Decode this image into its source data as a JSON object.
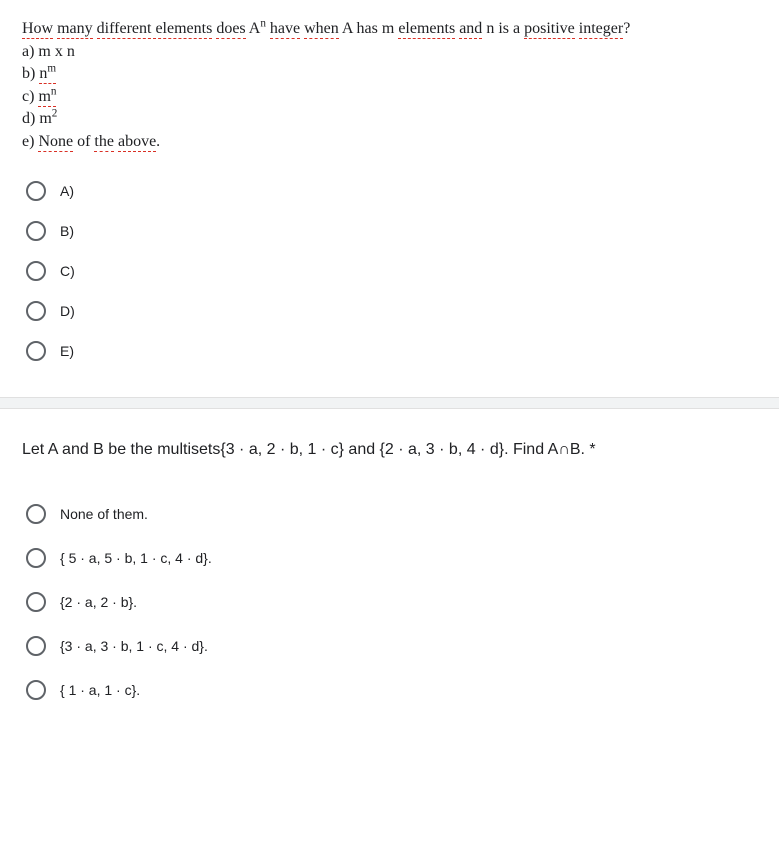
{
  "q1": {
    "stem_html": "<p><span class='uline'>How</span> <span class='uline'>many</span> <span class='uline'>different elements</span> <span class='uline'>does</span> A<span class='sup'>n</span> <span class='uline'>have</span> <span class='uline'>when</span> A has m <span class='uline'>elements</span> <span class='uline'>and</span> n is a <span class='uline'>positive</span> <span class='uline'>integer</span>?</p><p>a) m x n</p><p>b) <span class='uline'>n<span class='sup'>m</span></span></p><p>c) <span class='uline'>m<span class='sup'>n</span></span></p><p>d) m<span class='sup'>2</span></p><p>e) <span class='uline'>None</span> of <span class='uline'>the</span> <span class='uline'>above</span>.</p>",
    "options": [
      "A)",
      "B)",
      "C)",
      "D)",
      "E)"
    ]
  },
  "q2": {
    "stem": "Let A and B be the multisets{3 · a, 2 · b, 1 · c} and {2 · a, 3 · b, 4 · d}. Find A∩B. *",
    "options": [
      "None of them.",
      "{ 5 · a, 5 · b, 1 · c, 4 · d}.",
      "{2 · a, 2 · b}.",
      "{3 · a, 3 · b, 1 · c, 4 · d}.",
      "{ 1 · a, 1 · c}."
    ]
  },
  "colors": {
    "text": "#202124",
    "radio_border": "#5f6368",
    "underline": "#d93025",
    "divider_bg": "#f1f3f4"
  }
}
